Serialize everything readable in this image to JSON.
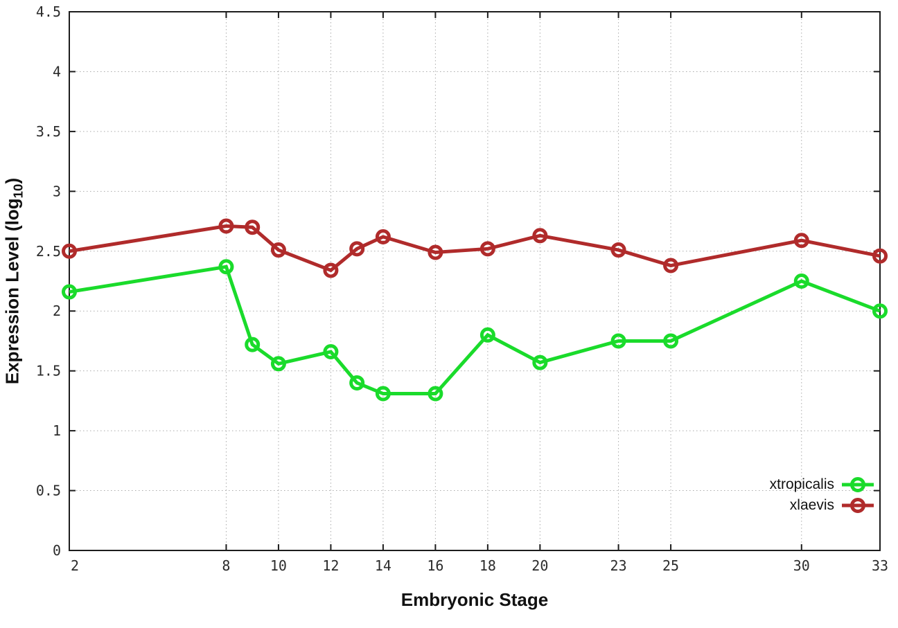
{
  "chart_data": {
    "type": "line",
    "title": "",
    "xlabel": "Embryonic Stage",
    "ylabel": {
      "prefix": "Expression Level (log",
      "sub": "10",
      "suffix": ")"
    },
    "x": [
      2,
      8,
      9,
      10,
      12,
      13,
      14,
      16,
      18,
      20,
      23,
      25,
      30,
      33
    ],
    "series": [
      {
        "name": "xtropicalis",
        "color": "#1ADB2B",
        "values": [
          2.16,
          2.37,
          1.72,
          1.56,
          1.66,
          1.4,
          1.31,
          1.31,
          1.8,
          1.57,
          1.75,
          1.75,
          2.25,
          2.0
        ]
      },
      {
        "name": "xlaevis",
        "color": "#B02B2B",
        "values": [
          2.5,
          2.71,
          2.7,
          2.51,
          2.34,
          2.52,
          2.62,
          2.49,
          2.52,
          2.63,
          2.51,
          2.38,
          2.59,
          2.46
        ]
      }
    ],
    "xticks": [
      2,
      8,
      10,
      12,
      14,
      16,
      18,
      20,
      23,
      25,
      30,
      33
    ],
    "yticks": [
      0,
      0.5,
      1,
      1.5,
      2,
      2.5,
      3,
      3.5,
      4,
      4.5
    ],
    "xlim": [
      2,
      33
    ],
    "ylim": [
      0,
      4.5
    ],
    "grid": true,
    "legend_position": "inside-bottom-right",
    "style": {
      "grid_color": "#aaaaaa",
      "border_color": "#1c1c1c",
      "tick_label_color": "#2b2b2b",
      "background": "#ffffff"
    }
  }
}
